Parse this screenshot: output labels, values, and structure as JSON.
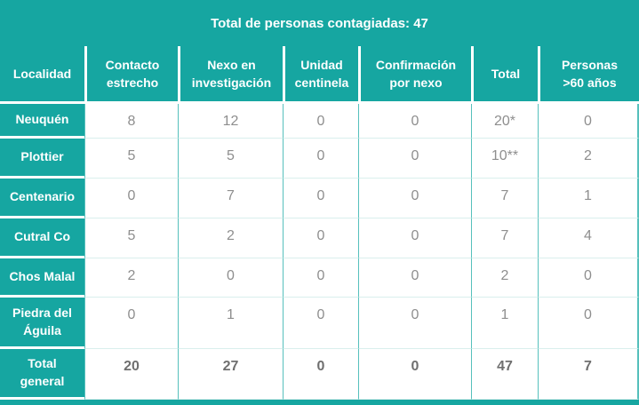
{
  "title": "Total de personas contagiadas: 47",
  "total_contagiados": 47,
  "colors": {
    "teal_accent": "#16a6a1",
    "grid_line_vertical": "#56c0bc",
    "grid_line_horizontal": "#d9efed",
    "data_text": "#8e8e8e",
    "total_text": "#6f6f6f",
    "header_text": "#ffffff"
  },
  "table": {
    "headers": [
      "Localidad",
      "Contacto\nestrecho",
      "Nexo en\ninvestigación",
      "Unidad\ncentinela",
      "Confirmación\npor nexo",
      "Total",
      "Personas\n>60 años"
    ],
    "rows": [
      {
        "localidad": "Neuquén",
        "values": [
          "8",
          "12",
          "0",
          "0",
          "20*",
          "0"
        ]
      },
      {
        "localidad": "Plottier",
        "values": [
          "5",
          "5",
          "0",
          "0",
          "10**",
          "2"
        ]
      },
      {
        "localidad": "Centenario",
        "values": [
          "0",
          "7",
          "0",
          "0",
          "7",
          "1"
        ]
      },
      {
        "localidad": "Cutral Co",
        "values": [
          "5",
          "2",
          "0",
          "0",
          "7",
          "4"
        ]
      },
      {
        "localidad": "Chos Malal",
        "values": [
          "2",
          "0",
          "0",
          "0",
          "2",
          "0"
        ]
      },
      {
        "localidad": "Piedra del\nÁguila",
        "values": [
          "0",
          "1",
          "0",
          "0",
          "1",
          "0"
        ]
      }
    ],
    "total_row": {
      "localidad": "Total\ngeneral",
      "values": [
        "20",
        "27",
        "0",
        "0",
        "47",
        "7"
      ]
    }
  }
}
